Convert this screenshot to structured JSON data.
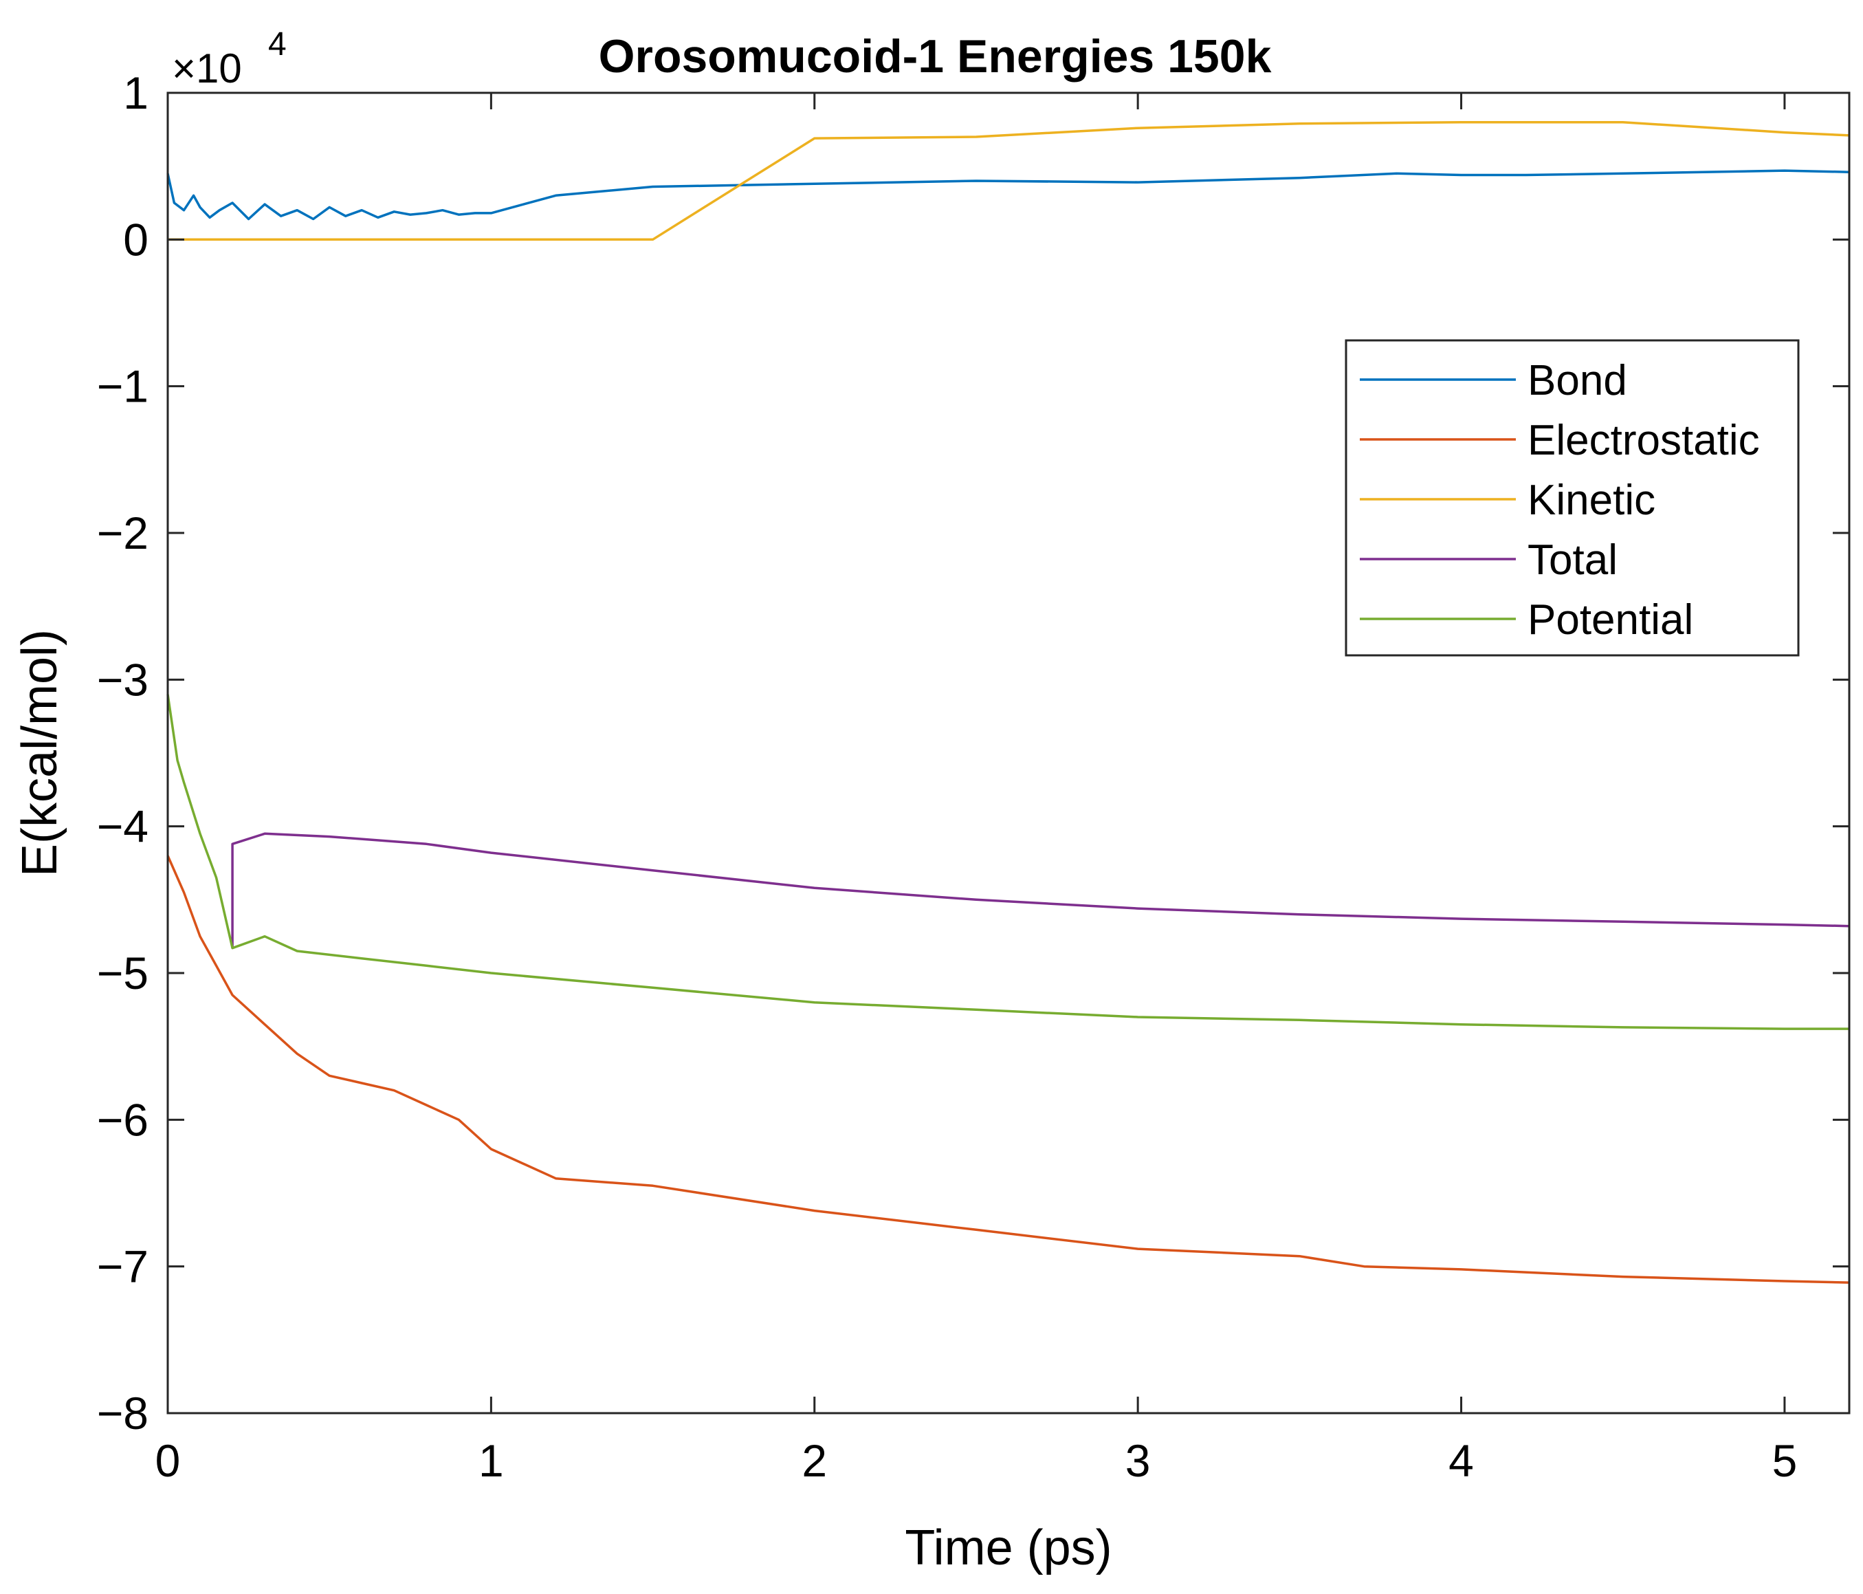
{
  "chart_data": {
    "type": "line",
    "title": "Orosomucoid-1 Energies 150k",
    "xlabel": "Time (ps)",
    "ylabel": "E(kcal/mol)",
    "exponent_label": {
      "base": "×10",
      "power": "4"
    },
    "xlim": [
      0,
      5.2
    ],
    "ylim": [
      -8,
      1
    ],
    "x_ticks": [
      0,
      1,
      2,
      3,
      4,
      5
    ],
    "x_tick_labels": [
      "0",
      "1",
      "2",
      "3",
      "4",
      "5"
    ],
    "y_ticks": [
      1,
      0,
      -1,
      -2,
      -3,
      -4,
      -5,
      -6,
      -7,
      -8
    ],
    "y_tick_labels": [
      "1",
      "0",
      "−1",
      "−2",
      "−3",
      "−4",
      "−5",
      "−6",
      "−7",
      "−8"
    ],
    "grid": false,
    "legend_position": "upper-right",
    "series": [
      {
        "name": "Bond",
        "color": "#0072BD",
        "x": [
          0,
          0.02,
          0.05,
          0.08,
          0.1,
          0.13,
          0.16,
          0.2,
          0.25,
          0.3,
          0.35,
          0.4,
          0.45,
          0.5,
          0.55,
          0.6,
          0.65,
          0.7,
          0.75,
          0.8,
          0.85,
          0.9,
          0.95,
          1.0,
          1.2,
          1.5,
          2.0,
          2.5,
          3.0,
          3.5,
          3.8,
          4.0,
          4.2,
          4.5,
          5.0,
          5.2
        ],
        "y": [
          0.45,
          0.25,
          0.2,
          0.3,
          0.22,
          0.15,
          0.2,
          0.25,
          0.14,
          0.24,
          0.16,
          0.2,
          0.14,
          0.22,
          0.16,
          0.2,
          0.15,
          0.19,
          0.17,
          0.18,
          0.2,
          0.17,
          0.18,
          0.18,
          0.3,
          0.36,
          0.38,
          0.4,
          0.39,
          0.42,
          0.45,
          0.44,
          0.44,
          0.45,
          0.47,
          0.46
        ]
      },
      {
        "name": "Electrostatic",
        "color": "#D95319",
        "x": [
          0,
          0.05,
          0.1,
          0.15,
          0.2,
          0.3,
          0.4,
          0.5,
          0.6,
          0.7,
          0.8,
          0.9,
          1.0,
          1.2,
          1.5,
          2.0,
          2.5,
          3.0,
          3.5,
          3.7,
          4.0,
          4.5,
          5.0,
          5.2
        ],
        "y": [
          -4.2,
          -4.45,
          -4.75,
          -4.95,
          -5.15,
          -5.35,
          -5.55,
          -5.7,
          -5.75,
          -5.8,
          -5.9,
          -6.0,
          -6.2,
          -6.4,
          -6.45,
          -6.62,
          -6.75,
          -6.88,
          -6.93,
          -7.0,
          -7.02,
          -7.07,
          -7.1,
          -7.11
        ]
      },
      {
        "name": "Kinetic",
        "color": "#EDB120",
        "x": [
          0,
          0.2,
          0.4,
          0.6,
          0.8,
          1.0,
          1.2,
          1.5,
          2.0,
          2.5,
          3.0,
          3.5,
          4.0,
          4.5,
          5.0,
          5.2
        ],
        "y": [
          0,
          0,
          0,
          0,
          0,
          0,
          0,
          0,
          0.69,
          0.7,
          0.76,
          0.79,
          0.8,
          0.8,
          0.73,
          0.71
        ]
      },
      {
        "name": "Total",
        "color": "#7E2F8E",
        "x": [
          0.2,
          0.2,
          0.3,
          0.5,
          0.8,
          1.0,
          1.5,
          2.0,
          2.5,
          3.0,
          3.5,
          4.0,
          4.5,
          5.0,
          5.2
        ],
        "y": [
          -4.83,
          -4.12,
          -4.05,
          -4.07,
          -4.12,
          -4.18,
          -4.3,
          -4.42,
          -4.5,
          -4.56,
          -4.6,
          -4.63,
          -4.65,
          -4.67,
          -4.68
        ]
      },
      {
        "name": "Potential",
        "color": "#77AC30",
        "x": [
          0,
          0.03,
          0.05,
          0.1,
          0.15,
          0.2,
          0.3,
          0.4,
          0.6,
          0.8,
          1.0,
          1.5,
          2.0,
          2.5,
          3.0,
          3.5,
          4.0,
          4.5,
          5.0,
          5.2
        ],
        "y": [
          -3.1,
          -3.55,
          -3.7,
          -4.05,
          -4.35,
          -4.83,
          -4.75,
          -4.85,
          -4.9,
          -4.95,
          -5.0,
          -5.1,
          -5.2,
          -5.25,
          -5.3,
          -5.32,
          -5.35,
          -5.37,
          -5.38,
          -5.38
        ]
      }
    ]
  }
}
